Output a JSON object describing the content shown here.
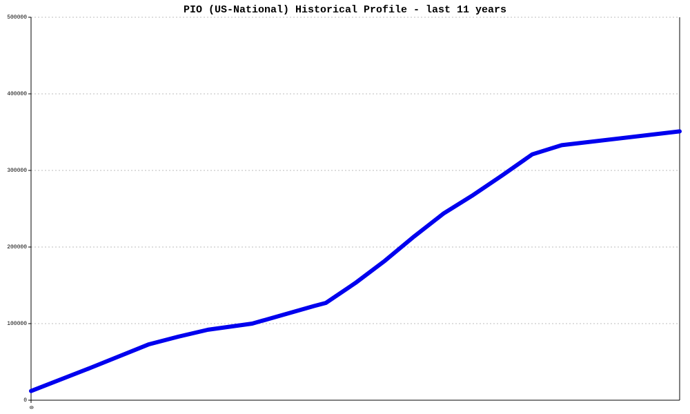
{
  "chart_data": {
    "type": "line",
    "title": "PIO (US-National) Historical Profile - last 11 years",
    "x": [
      0,
      2,
      4,
      5,
      6,
      7.5,
      9.6,
      10,
      11,
      12,
      13,
      14,
      15,
      16,
      17,
      18,
      22
    ],
    "series": [
      {
        "color": "#0000ee",
        "values": [
          12000,
          42000,
          73000,
          83000,
          92000,
          100000,
          123000,
          127000,
          153000,
          182000,
          214000,
          244000,
          268000,
          294000,
          321000,
          333000,
          351000
        ]
      }
    ],
    "xlim": [
      0,
      22
    ],
    "xticks": [
      0
    ],
    "ylim": [
      0,
      500000
    ],
    "yticks": [
      0,
      100000,
      200000,
      300000,
      400000,
      500000
    ],
    "grid": true
  }
}
